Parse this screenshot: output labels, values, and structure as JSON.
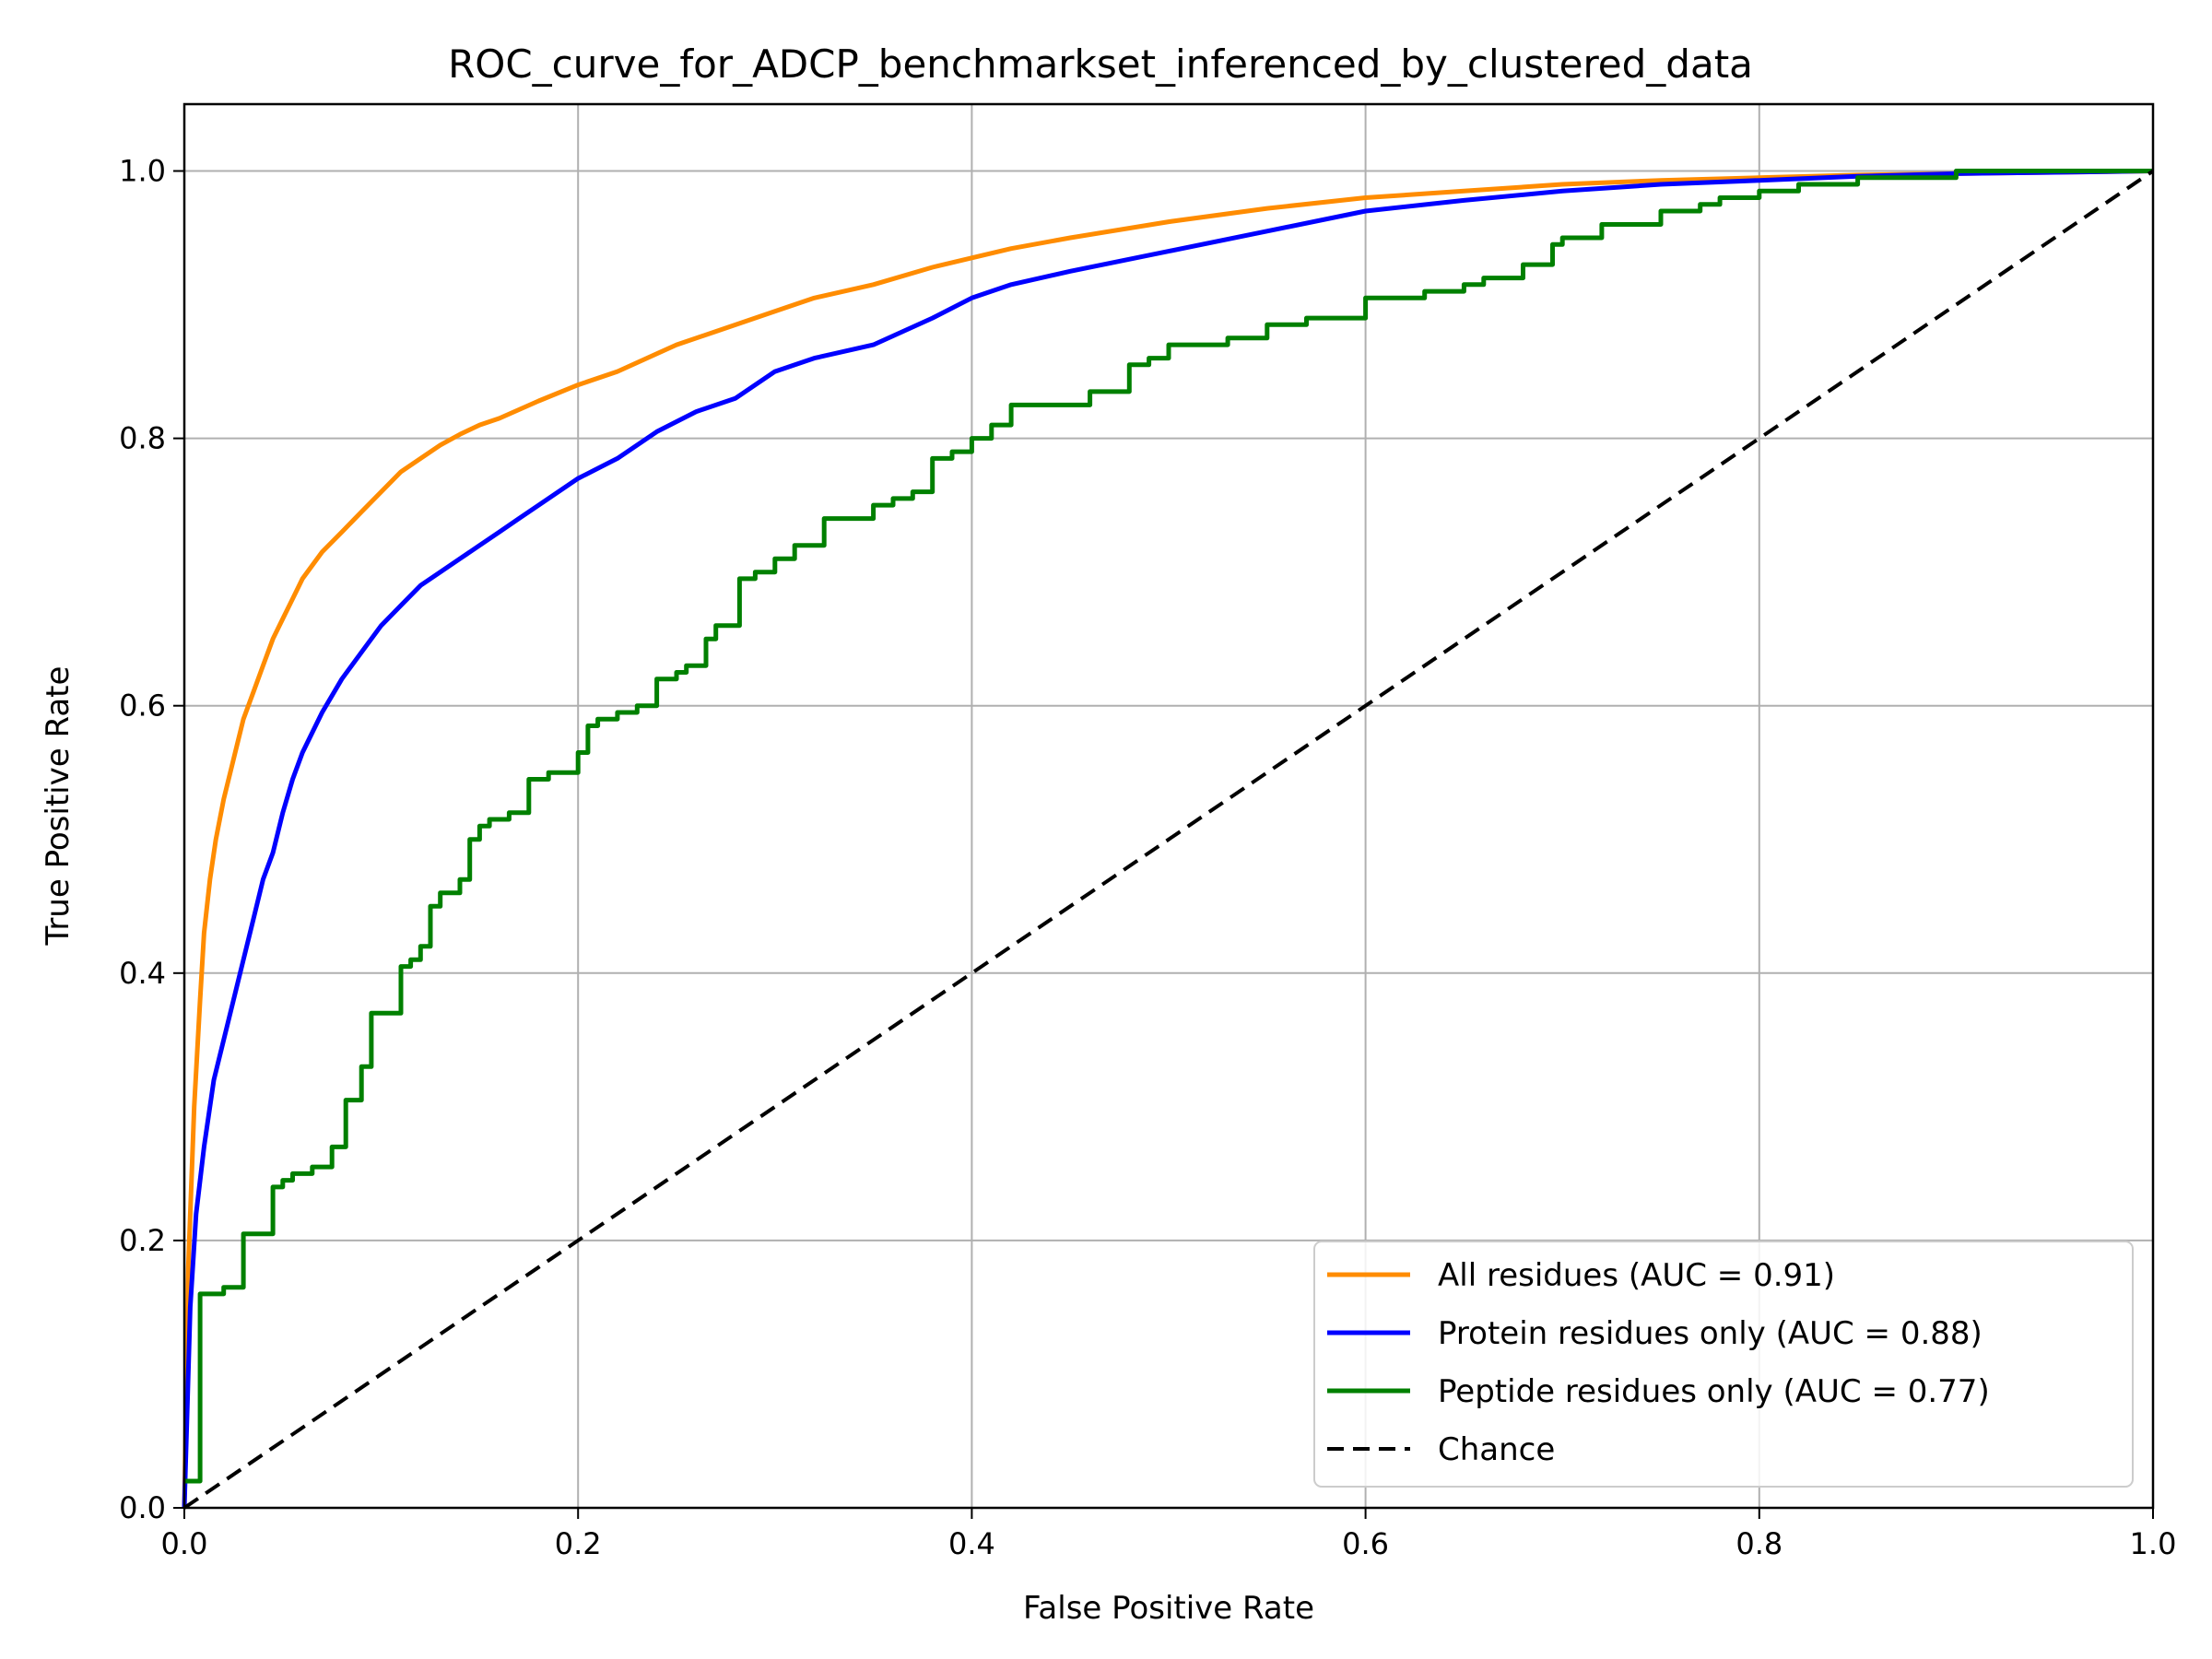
{
  "chart_data": {
    "type": "line",
    "title": "ROC_curve_for_ADCP_benchmarkset_inferenced_by_clustered_data",
    "xlabel": "False Positive Rate",
    "ylabel": "True Positive Rate",
    "xlim": [
      0.0,
      1.0
    ],
    "ylim": [
      0.0,
      1.05
    ],
    "xticks": [
      "0.0",
      "0.2",
      "0.4",
      "0.6",
      "0.8",
      "1.0"
    ],
    "yticks": [
      "0.0",
      "0.2",
      "0.4",
      "0.6",
      "0.8",
      "1.0"
    ],
    "grid": true,
    "legend_position": "lower-right",
    "series": [
      {
        "name": "All residues (AUC = 0.91)",
        "color": "#ff8c00",
        "style": "solid",
        "x": [
          0.0,
          0.002,
          0.005,
          0.008,
          0.01,
          0.013,
          0.016,
          0.02,
          0.025,
          0.03,
          0.035,
          0.04,
          0.045,
          0.05,
          0.055,
          0.06,
          0.07,
          0.08,
          0.09,
          0.1,
          0.11,
          0.12,
          0.13,
          0.14,
          0.15,
          0.16,
          0.18,
          0.2,
          0.22,
          0.25,
          0.27,
          0.3,
          0.32,
          0.35,
          0.38,
          0.4,
          0.42,
          0.45,
          0.5,
          0.55,
          0.6,
          0.65,
          0.7,
          0.75,
          0.8,
          0.85,
          0.9,
          0.95,
          1.0
        ],
        "y": [
          0.0,
          0.18,
          0.3,
          0.38,
          0.43,
          0.47,
          0.5,
          0.53,
          0.56,
          0.59,
          0.61,
          0.63,
          0.65,
          0.665,
          0.68,
          0.695,
          0.715,
          0.73,
          0.745,
          0.76,
          0.775,
          0.785,
          0.795,
          0.803,
          0.81,
          0.815,
          0.828,
          0.84,
          0.85,
          0.87,
          0.88,
          0.895,
          0.905,
          0.915,
          0.928,
          0.935,
          0.942,
          0.95,
          0.962,
          0.972,
          0.98,
          0.985,
          0.99,
          0.993,
          0.995,
          0.997,
          0.998,
          0.999,
          1.0
        ]
      },
      {
        "name": "Protein residues only (AUC = 0.88)",
        "color": "#0000ff",
        "style": "solid",
        "x": [
          0.0,
          0.003,
          0.006,
          0.01,
          0.015,
          0.02,
          0.025,
          0.03,
          0.035,
          0.04,
          0.045,
          0.05,
          0.055,
          0.06,
          0.07,
          0.08,
          0.09,
          0.1,
          0.11,
          0.12,
          0.13,
          0.14,
          0.15,
          0.16,
          0.17,
          0.18,
          0.2,
          0.22,
          0.24,
          0.26,
          0.28,
          0.3,
          0.32,
          0.35,
          0.38,
          0.4,
          0.42,
          0.45,
          0.5,
          0.55,
          0.6,
          0.65,
          0.7,
          0.75,
          0.8,
          0.85,
          0.9,
          0.95,
          1.0
        ],
        "y": [
          0.0,
          0.15,
          0.22,
          0.27,
          0.32,
          0.35,
          0.38,
          0.41,
          0.44,
          0.47,
          0.49,
          0.52,
          0.545,
          0.565,
          0.595,
          0.62,
          0.64,
          0.66,
          0.675,
          0.69,
          0.7,
          0.71,
          0.72,
          0.73,
          0.74,
          0.75,
          0.77,
          0.785,
          0.805,
          0.82,
          0.83,
          0.85,
          0.86,
          0.87,
          0.89,
          0.905,
          0.915,
          0.925,
          0.94,
          0.955,
          0.97,
          0.978,
          0.985,
          0.99,
          0.993,
          0.996,
          0.998,
          0.999,
          1.0
        ]
      },
      {
        "name": "Peptide residues only (AUC = 0.77)",
        "color": "#008000",
        "style": "step",
        "x": [
          0.0,
          0.008,
          0.012,
          0.02,
          0.03,
          0.045,
          0.05,
          0.055,
          0.065,
          0.075,
          0.082,
          0.09,
          0.095,
          0.1,
          0.11,
          0.115,
          0.12,
          0.125,
          0.13,
          0.14,
          0.145,
          0.15,
          0.155,
          0.165,
          0.175,
          0.185,
          0.2,
          0.205,
          0.21,
          0.22,
          0.23,
          0.24,
          0.25,
          0.255,
          0.265,
          0.27,
          0.282,
          0.29,
          0.3,
          0.31,
          0.32,
          0.325,
          0.345,
          0.35,
          0.36,
          0.37,
          0.38,
          0.39,
          0.4,
          0.41,
          0.42,
          0.44,
          0.46,
          0.48,
          0.49,
          0.5,
          0.53,
          0.55,
          0.57,
          0.6,
          0.63,
          0.65,
          0.66,
          0.68,
          0.695,
          0.7,
          0.72,
          0.75,
          0.77,
          0.78,
          0.8,
          0.82,
          0.85,
          0.9,
          1.0
        ],
        "y": [
          0.02,
          0.16,
          0.16,
          0.165,
          0.205,
          0.24,
          0.245,
          0.25,
          0.255,
          0.27,
          0.305,
          0.33,
          0.37,
          0.37,
          0.405,
          0.41,
          0.42,
          0.45,
          0.46,
          0.47,
          0.5,
          0.51,
          0.515,
          0.52,
          0.545,
          0.55,
          0.565,
          0.585,
          0.59,
          0.595,
          0.6,
          0.62,
          0.625,
          0.63,
          0.65,
          0.66,
          0.695,
          0.7,
          0.71,
          0.72,
          0.72,
          0.74,
          0.74,
          0.75,
          0.755,
          0.76,
          0.785,
          0.79,
          0.8,
          0.81,
          0.825,
          0.825,
          0.835,
          0.855,
          0.86,
          0.87,
          0.875,
          0.885,
          0.89,
          0.905,
          0.91,
          0.915,
          0.92,
          0.93,
          0.945,
          0.95,
          0.96,
          0.97,
          0.975,
          0.98,
          0.985,
          0.99,
          0.995,
          1.0,
          1.0
        ]
      },
      {
        "name": "Chance",
        "color": "#000000",
        "style": "dashed",
        "x": [
          0.0,
          1.0
        ],
        "y": [
          0.0,
          1.0
        ]
      }
    ]
  }
}
